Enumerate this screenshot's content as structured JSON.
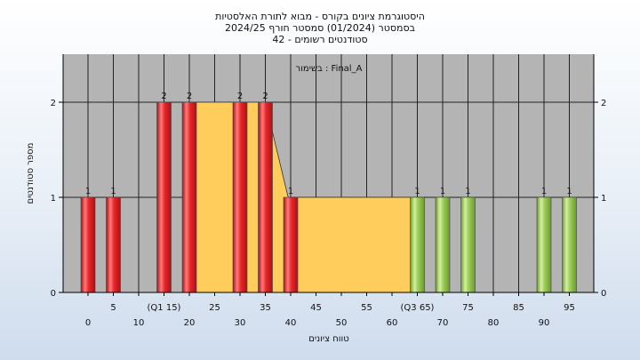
{
  "chart_data": {
    "type": "bar",
    "title_lines": [
      "היסטוגרמת ציונים בקורס - מבוא לתורת האלסטיות",
      "בסמסטר  (01/2024)  סמסטר חורף 2024/25",
      "סטודנטים רשומים - 42"
    ],
    "legend": "בשימור : Final_A",
    "xlabel": "טווח ציונים",
    "ylabel": "מספר סטודנטים",
    "ylim": [
      0,
      2.4
    ],
    "xlim": [
      -5,
      100
    ],
    "yticks": [
      0,
      1,
      2
    ],
    "xticks_top": [
      {
        "x": 5,
        "label": "5"
      },
      {
        "x": 15,
        "label": "(Q1 15)"
      },
      {
        "x": 25,
        "label": "25"
      },
      {
        "x": 35,
        "label": "35"
      },
      {
        "x": 45,
        "label": "45"
      },
      {
        "x": 55,
        "label": "55"
      },
      {
        "x": 65,
        "label": "(Q3 65)"
      },
      {
        "x": 75,
        "label": "75"
      },
      {
        "x": 85,
        "label": "85"
      },
      {
        "x": 95,
        "label": "95"
      }
    ],
    "xticks_bottom": [
      {
        "x": 0,
        "label": "0"
      },
      {
        "x": 10,
        "label": "10"
      },
      {
        "x": 20,
        "label": "20"
      },
      {
        "x": 30,
        "label": "30"
      },
      {
        "x": 40,
        "label": "40"
      },
      {
        "x": 50,
        "label": "50"
      },
      {
        "x": 60,
        "label": "60"
      },
      {
        "x": 70,
        "label": "70"
      },
      {
        "x": 80,
        "label": "80"
      },
      {
        "x": 90,
        "label": "90"
      }
    ],
    "bars": [
      {
        "x": 0,
        "value": 1,
        "color": "red"
      },
      {
        "x": 5,
        "value": 1,
        "color": "red"
      },
      {
        "x": 15,
        "value": 2,
        "color": "red"
      },
      {
        "x": 20,
        "value": 2,
        "color": "red"
      },
      {
        "x": 30,
        "value": 2,
        "color": "red"
      },
      {
        "x": 35,
        "value": 2,
        "color": "red"
      },
      {
        "x": 40,
        "value": 1,
        "color": "red"
      },
      {
        "x": 65,
        "value": 1,
        "color": "green"
      },
      {
        "x": 70,
        "value": 1,
        "color": "green"
      },
      {
        "x": 75,
        "value": 1,
        "color": "green"
      },
      {
        "x": 90,
        "value": 1,
        "color": "green"
      },
      {
        "x": 95,
        "value": 1,
        "color": "green"
      }
    ],
    "iqr_area": [
      {
        "x": 20,
        "y": 0
      },
      {
        "x": 20,
        "y": 2
      },
      {
        "x": 35,
        "y": 2
      },
      {
        "x": 39.5,
        "y": 1
      },
      {
        "x": 64,
        "y": 1
      },
      {
        "x": 64,
        "y": 0
      }
    ],
    "colors": {
      "plot_bg": "#b4b4b4",
      "red": "#e8262a",
      "green": "#9ccc5a",
      "area": "#ffcd5c"
    }
  }
}
